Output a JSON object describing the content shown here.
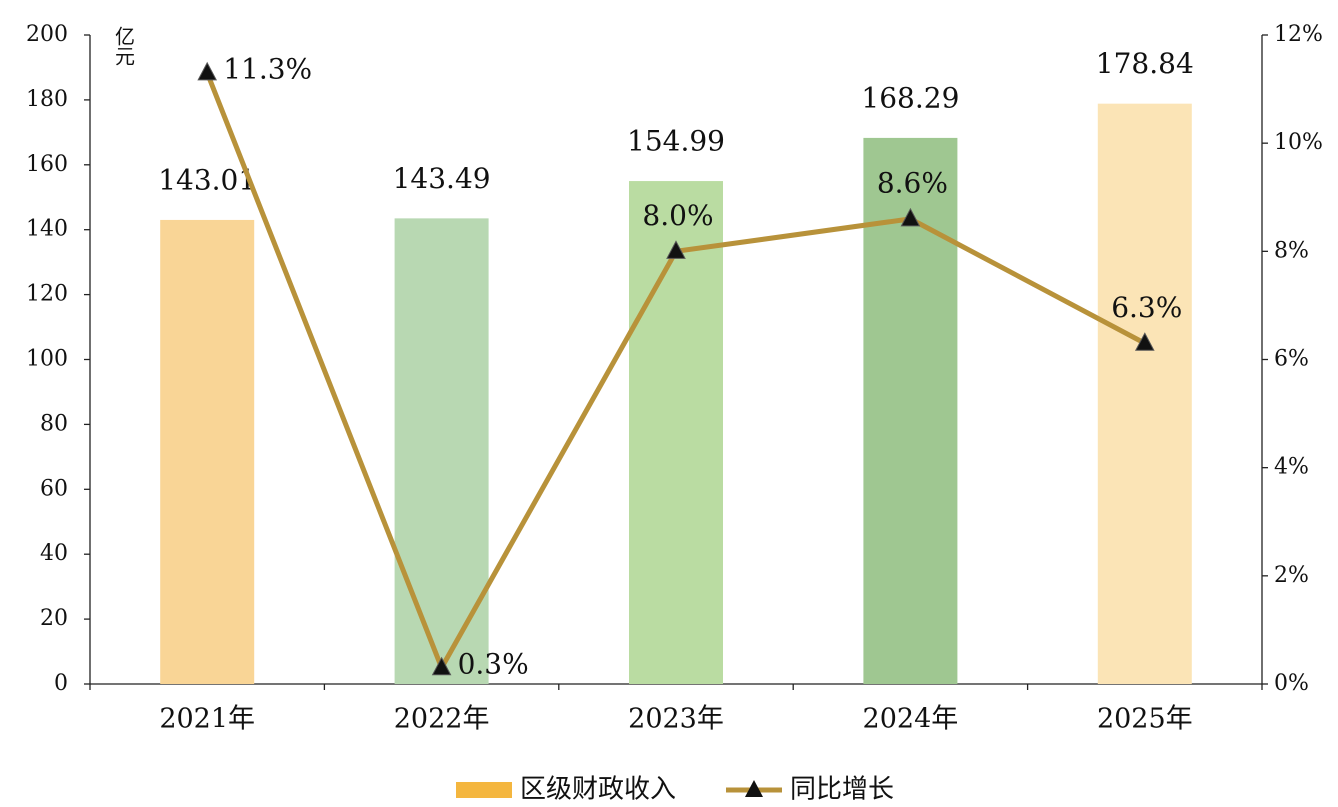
{
  "chart_data": {
    "type": "combo",
    "y_unit": "亿元",
    "categories": [
      "2021年",
      "2022年",
      "2023年",
      "2024年",
      "2025年"
    ],
    "series": [
      {
        "name": "区级财政收入",
        "type": "bar",
        "color": "#f4b63f",
        "colors": [
          "#f9d596",
          "#b8d8b2",
          "#badca2",
          "#9fc791",
          "#fbe4b6"
        ],
        "values": [
          143.01,
          143.49,
          154.99,
          168.29,
          178.84
        ]
      },
      {
        "name": "同比增长",
        "type": "line",
        "axis": "y2",
        "color": "#b8923a",
        "marker_color": "#111111",
        "values": [
          11.3,
          0.3,
          8.0,
          8.6,
          6.3
        ],
        "value_labels": [
          "11.3%",
          "0.3%",
          "8.0%",
          "8.6%",
          "6.3%"
        ]
      }
    ],
    "ylim": [
      0,
      200
    ],
    "yticks": [
      0,
      20,
      40,
      60,
      80,
      100,
      120,
      140,
      160,
      180,
      200
    ],
    "y2lim": [
      0,
      12
    ],
    "y2ticks": [
      {
        "value": 0,
        "label": "0%"
      },
      {
        "value": 2,
        "label": "2%"
      },
      {
        "value": 4,
        "label": "4%"
      },
      {
        "value": 6,
        "label": "6%"
      },
      {
        "value": 8,
        "label": "8%"
      },
      {
        "value": 10,
        "label": "10%"
      },
      {
        "value": 12,
        "label": "12%"
      }
    ],
    "grid": false,
    "legend": "bottom"
  }
}
